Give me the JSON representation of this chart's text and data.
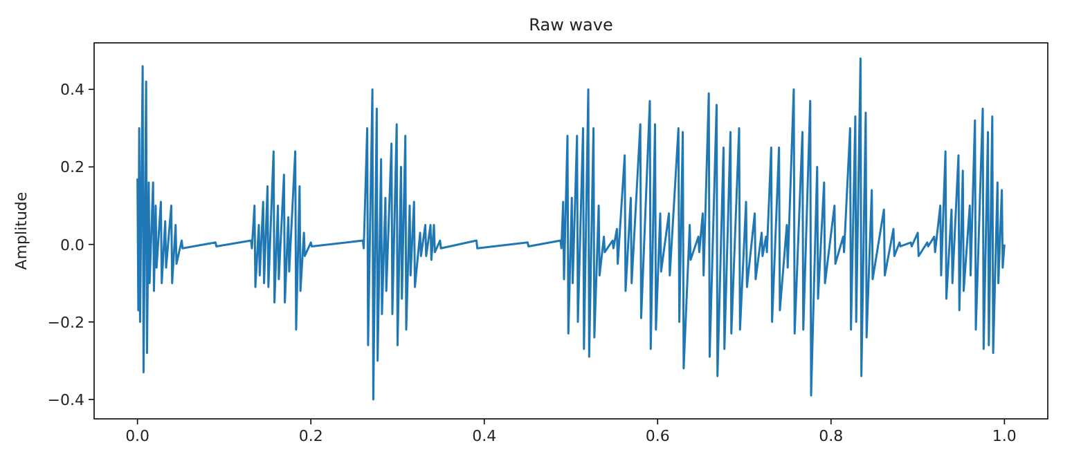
{
  "chart_data": {
    "type": "line",
    "title": "Raw wave",
    "ylabel": "Amplitude",
    "xlim": [
      -0.05,
      1.05
    ],
    "ylim": [
      -0.45,
      0.52
    ],
    "xticks": [
      {
        "value": 0,
        "label": "0.0"
      },
      {
        "value": 0.2,
        "label": "0.2"
      },
      {
        "value": 0.4,
        "label": "0.4"
      },
      {
        "value": 0.6,
        "label": "0.6"
      },
      {
        "value": 0.8,
        "label": "0.8"
      },
      {
        "value": 1,
        "label": "1.0"
      }
    ],
    "yticks": [
      {
        "value": -0.4,
        "label": "−0.4"
      },
      {
        "value": -0.2,
        "label": "−0.2"
      },
      {
        "value": 0,
        "label": "0.0"
      },
      {
        "value": 0.2,
        "label": "0.2"
      },
      {
        "value": 0.4,
        "label": "0.4"
      }
    ],
    "series": [
      {
        "color": "#1f77b4",
        "x": [
          0.0,
          0.001,
          0.002,
          0.003,
          0.006,
          0.007,
          0.01,
          0.011,
          0.013,
          0.014,
          0.018,
          0.019,
          0.021,
          0.022,
          0.027,
          0.028,
          0.032,
          0.033,
          0.039,
          0.04,
          0.044,
          0.045,
          0.051,
          0.052,
          0.09,
          0.091,
          0.131,
          0.132,
          0.135,
          0.136,
          0.14,
          0.141,
          0.145,
          0.146,
          0.15,
          0.151,
          0.157,
          0.158,
          0.162,
          0.163,
          0.169,
          0.17,
          0.174,
          0.175,
          0.182,
          0.183,
          0.187,
          0.188,
          0.192,
          0.193,
          0.2,
          0.201,
          0.26,
          0.261,
          0.265,
          0.266,
          0.271,
          0.272,
          0.276,
          0.277,
          0.281,
          0.282,
          0.286,
          0.287,
          0.293,
          0.294,
          0.299,
          0.3,
          0.304,
          0.305,
          0.309,
          0.31,
          0.314,
          0.315,
          0.319,
          0.32,
          0.326,
          0.327,
          0.332,
          0.333,
          0.338,
          0.339,
          0.342,
          0.343,
          0.349,
          0.35,
          0.391,
          0.392,
          0.45,
          0.451,
          0.488,
          0.489,
          0.491,
          0.492,
          0.496,
          0.497,
          0.501,
          0.502,
          0.507,
          0.508,
          0.514,
          0.515,
          0.52,
          0.521,
          0.526,
          0.527,
          0.532,
          0.533,
          0.538,
          0.539,
          0.548,
          0.549,
          0.553,
          0.554,
          0.562,
          0.563,
          0.569,
          0.57,
          0.58,
          0.581,
          0.591,
          0.592,
          0.597,
          0.598,
          0.603,
          0.604,
          0.613,
          0.614,
          0.624,
          0.625,
          0.629,
          0.63,
          0.637,
          0.638,
          0.647,
          0.648,
          0.652,
          0.653,
          0.659,
          0.66,
          0.668,
          0.669,
          0.676,
          0.677,
          0.684,
          0.685,
          0.694,
          0.695,
          0.702,
          0.703,
          0.712,
          0.713,
          0.72,
          0.721,
          0.725,
          0.726,
          0.731,
          0.732,
          0.74,
          0.741,
          0.749,
          0.75,
          0.757,
          0.758,
          0.767,
          0.768,
          0.776,
          0.777,
          0.784,
          0.785,
          0.792,
          0.793,
          0.804,
          0.805,
          0.814,
          0.815,
          0.822,
          0.823,
          0.828,
          0.829,
          0.834,
          0.835,
          0.84,
          0.841,
          0.847,
          0.848,
          0.861,
          0.862,
          0.872,
          0.873,
          0.879,
          0.88,
          0.892,
          0.893,
          0.9,
          0.901,
          0.911,
          0.912,
          0.919,
          0.92,
          0.926,
          0.927,
          0.932,
          0.933,
          0.939,
          0.94,
          0.947,
          0.948,
          0.952,
          0.953,
          0.96,
          0.961,
          0.966,
          0.967,
          0.975,
          0.976,
          0.981,
          0.982,
          0.986,
          0.987,
          0.992,
          0.993,
          0.997,
          0.998,
          1.0
        ],
        "values": [
          0.17,
          -0.17,
          0.3,
          -0.2,
          0.46,
          -0.33,
          0.42,
          -0.28,
          0.16,
          -0.1,
          0.16,
          -0.12,
          0.1,
          -0.06,
          0.11,
          -0.1,
          0.06,
          -0.06,
          0.1,
          -0.1,
          0.05,
          -0.05,
          0.01,
          -0.01,
          0.005,
          -0.005,
          0.01,
          -0.01,
          0.1,
          -0.11,
          0.05,
          -0.08,
          0.11,
          -0.1,
          0.15,
          -0.11,
          0.24,
          -0.15,
          0.1,
          -0.09,
          0.18,
          -0.15,
          0.07,
          -0.07,
          0.24,
          -0.22,
          0.15,
          -0.12,
          0.03,
          -0.03,
          0.005,
          -0.005,
          0.01,
          -0.01,
          0.3,
          -0.26,
          0.4,
          -0.4,
          0.35,
          -0.3,
          0.22,
          -0.18,
          0.12,
          -0.12,
          0.26,
          -0.18,
          0.31,
          -0.26,
          0.2,
          -0.14,
          0.28,
          -0.22,
          0.1,
          -0.08,
          0.11,
          -0.11,
          0.03,
          -0.03,
          0.05,
          -0.03,
          0.05,
          -0.04,
          0.05,
          -0.02,
          0.01,
          -0.01,
          0.01,
          -0.01,
          0.005,
          -0.005,
          0.01,
          -0.01,
          0.11,
          -0.09,
          0.28,
          -0.23,
          0.12,
          -0.1,
          0.28,
          -0.2,
          0.3,
          -0.27,
          0.4,
          -0.29,
          0.3,
          -0.24,
          0.1,
          -0.08,
          0.02,
          -0.02,
          0.01,
          -0.01,
          0.04,
          -0.05,
          0.23,
          -0.12,
          0.12,
          -0.1,
          0.31,
          -0.19,
          0.37,
          -0.27,
          0.31,
          -0.22,
          0.08,
          -0.07,
          0.08,
          -0.08,
          0.3,
          -0.2,
          0.29,
          -0.32,
          0.05,
          -0.04,
          0.02,
          -0.02,
          0.08,
          -0.08,
          0.39,
          -0.29,
          0.36,
          -0.34,
          0.25,
          -0.27,
          0.29,
          -0.23,
          0.3,
          -0.22,
          0.11,
          -0.11,
          0.08,
          -0.09,
          0.03,
          -0.03,
          0.02,
          -0.02,
          0.25,
          -0.2,
          0.25,
          -0.17,
          0.05,
          -0.06,
          0.4,
          -0.23,
          0.29,
          -0.22,
          0.37,
          -0.39,
          0.2,
          -0.14,
          0.16,
          -0.1,
          0.1,
          -0.05,
          0.02,
          -0.02,
          0.3,
          -0.22,
          0.33,
          -0.2,
          0.48,
          -0.34,
          0.34,
          -0.24,
          0.14,
          -0.09,
          0.09,
          -0.08,
          0.04,
          -0.03,
          0.005,
          -0.005,
          0.005,
          -0.005,
          0.03,
          -0.03,
          0.005,
          -0.005,
          0.02,
          -0.02,
          0.1,
          -0.08,
          0.24,
          -0.14,
          0.09,
          -0.1,
          0.23,
          -0.17,
          0.19,
          -0.12,
          0.1,
          -0.08,
          0.32,
          -0.22,
          0.35,
          -0.27,
          0.29,
          -0.26,
          0.33,
          -0.28,
          0.16,
          -0.1,
          0.14,
          -0.06,
          0
        ]
      }
    ]
  }
}
